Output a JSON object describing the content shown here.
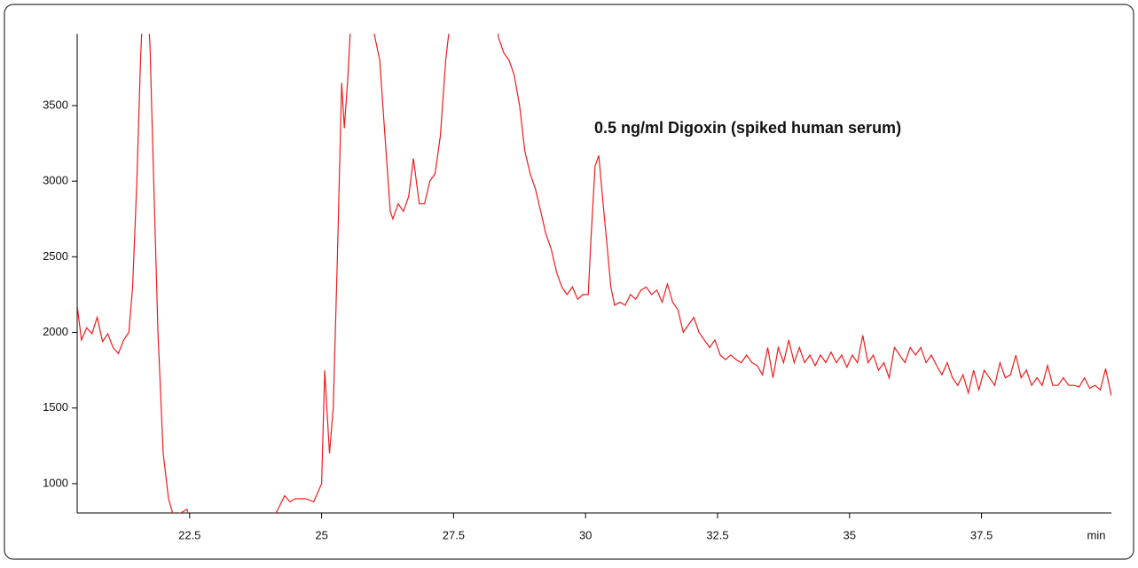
{
  "chart_data": {
    "type": "line",
    "annotation": "0.5 ng/ml Digoxin (spiked human serum)",
    "xlabel": "min",
    "color": "#ee1c1c",
    "xlim": [
      20.37,
      39.96
    ],
    "xticks": [
      22.5,
      25,
      27.5,
      30,
      32.5,
      35,
      37.5
    ],
    "ylim": [
      806,
      3975
    ],
    "yticks": [
      1000,
      1500,
      2000,
      2500,
      3000,
      3500
    ],
    "x": [
      20.37,
      20.45,
      20.55,
      20.65,
      20.75,
      20.85,
      20.95,
      21.05,
      21.15,
      21.25,
      21.35,
      21.42,
      21.5,
      21.57,
      21.62,
      21.7,
      21.75,
      21.82,
      21.9,
      22.0,
      22.1,
      22.2,
      22.3,
      22.45,
      22.55,
      23.0,
      23.5,
      24.0,
      24.1,
      24.2,
      24.3,
      24.4,
      24.5,
      24.7,
      24.85,
      25.0,
      25.06,
      25.1,
      25.15,
      25.22,
      25.3,
      25.38,
      25.43,
      25.5,
      25.56,
      25.8,
      26.1,
      26.2,
      26.3,
      26.35,
      26.45,
      26.55,
      26.65,
      26.74,
      26.85,
      26.95,
      27.05,
      27.15,
      27.25,
      27.35,
      27.45,
      28.0,
      28.3,
      28.35,
      28.45,
      28.55,
      28.65,
      28.75,
      28.85,
      28.95,
      29.05,
      29.15,
      29.25,
      29.35,
      29.45,
      29.55,
      29.65,
      29.75,
      29.85,
      29.95,
      30.05,
      30.1,
      30.18,
      30.25,
      30.32,
      30.4,
      30.48,
      30.55,
      30.65,
      30.75,
      30.85,
      30.95,
      31.05,
      31.15,
      31.25,
      31.35,
      31.45,
      31.55,
      31.65,
      31.75,
      31.85,
      31.95,
      32.05,
      32.15,
      32.25,
      32.35,
      32.45,
      32.55,
      32.65,
      32.75,
      32.85,
      32.95,
      33.05,
      33.15,
      33.25,
      33.35,
      33.45,
      33.55,
      33.65,
      33.75,
      33.85,
      33.95,
      34.05,
      34.15,
      34.25,
      34.35,
      34.45,
      34.55,
      34.65,
      34.75,
      34.85,
      34.95,
      35.05,
      35.15,
      35.25,
      35.35,
      35.45,
      35.55,
      35.65,
      35.75,
      35.85,
      35.95,
      36.05,
      36.15,
      36.25,
      36.35,
      36.45,
      36.55,
      36.65,
      36.75,
      36.85,
      36.95,
      37.05,
      37.15,
      37.25,
      37.35,
      37.45,
      37.55,
      37.65,
      37.75,
      37.85,
      37.95,
      38.05,
      38.15,
      38.25,
      38.35,
      38.45,
      38.55,
      38.65,
      38.75,
      38.85,
      38.95,
      39.05,
      39.15,
      39.25,
      39.35,
      39.45,
      39.55,
      39.65,
      39.75,
      39.85,
      39.96
    ],
    "values": [
      2180,
      1950,
      2030,
      1990,
      2100,
      1940,
      1990,
      1900,
      1860,
      1950,
      2000,
      2300,
      3000,
      3800,
      4200,
      4200,
      3900,
      3000,
      2000,
      1200,
      900,
      780,
      800,
      830,
      700,
      650,
      650,
      700,
      780,
      850,
      920,
      880,
      900,
      900,
      880,
      1000,
      1750,
      1500,
      1200,
      1500,
      2500,
      3650,
      3350,
      3700,
      4100,
      4300,
      3800,
      3300,
      2800,
      2750,
      2850,
      2800,
      2900,
      3150,
      2850,
      2850,
      3000,
      3050,
      3300,
      3800,
      4100,
      4300,
      4100,
      3950,
      3850,
      3800,
      3700,
      3500,
      3200,
      3050,
      2950,
      2800,
      2650,
      2550,
      2400,
      2300,
      2250,
      2300,
      2220,
      2250,
      2250,
      2600,
      3100,
      3170,
      2900,
      2600,
      2300,
      2180,
      2200,
      2180,
      2250,
      2220,
      2280,
      2300,
      2250,
      2280,
      2200,
      2320,
      2200,
      2150,
      2000,
      2050,
      2100,
      2000,
      1950,
      1900,
      1950,
      1850,
      1820,
      1850,
      1820,
      1800,
      1850,
      1800,
      1780,
      1720,
      1900,
      1700,
      1900,
      1800,
      1950,
      1800,
      1900,
      1800,
      1850,
      1780,
      1850,
      1800,
      1870,
      1800,
      1850,
      1770,
      1850,
      1800,
      1980,
      1800,
      1850,
      1750,
      1800,
      1700,
      1900,
      1850,
      1800,
      1900,
      1850,
      1900,
      1800,
      1850,
      1780,
      1720,
      1800,
      1700,
      1650,
      1720,
      1600,
      1750,
      1620,
      1750,
      1700,
      1650,
      1800,
      1700,
      1720,
      1850,
      1700,
      1750,
      1650,
      1700,
      1650,
      1780,
      1650,
      1650,
      1700,
      1650,
      1650,
      1640,
      1700,
      1630,
      1650,
      1620,
      1760,
      1580
    ]
  }
}
